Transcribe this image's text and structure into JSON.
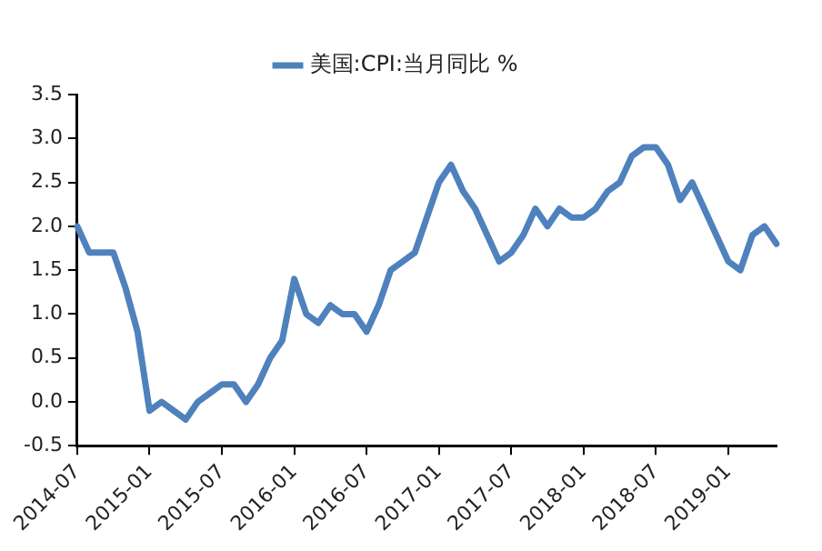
{
  "chart_data": {
    "type": "line",
    "legend": "top",
    "grid": false,
    "marker": "none",
    "line_style": "solid",
    "categories": [
      "2014-07",
      null,
      null,
      null,
      null,
      null,
      "2015-01",
      null,
      null,
      null,
      null,
      null,
      "2015-07",
      null,
      null,
      null,
      null,
      null,
      "2016-01",
      null,
      null,
      null,
      null,
      null,
      "2016-07",
      null,
      null,
      null,
      null,
      null,
      "2017-01",
      null,
      null,
      null,
      null,
      null,
      "2017-07",
      null,
      null,
      null,
      null,
      null,
      "2018-01",
      null,
      null,
      null,
      null,
      null,
      "2018-07",
      null,
      null,
      null,
      null,
      null,
      "2019-01",
      null,
      null,
      null,
      null
    ],
    "series": [
      {
        "name": "美国:CPI:当月同比 %",
        "color": "#4f81bd",
        "values": [
          2.0,
          1.7,
          1.7,
          1.7,
          1.3,
          0.8,
          -0.1,
          0.0,
          -0.1,
          -0.2,
          0.0,
          0.1,
          0.2,
          0.2,
          0.0,
          0.2,
          0.5,
          0.7,
          1.4,
          1.0,
          0.9,
          1.1,
          1.0,
          1.0,
          0.8,
          1.1,
          1.5,
          1.6,
          1.7,
          2.1,
          2.5,
          2.7,
          2.4,
          2.2,
          1.9,
          1.6,
          1.7,
          1.9,
          2.2,
          2.0,
          2.2,
          2.1,
          2.1,
          2.2,
          2.4,
          2.5,
          2.8,
          2.9,
          2.9,
          2.7,
          2.3,
          2.5,
          2.2,
          1.9,
          1.6,
          1.5,
          1.9,
          2.0,
          1.8
        ]
      }
    ],
    "ylim": [
      -0.5,
      3.5
    ],
    "yticks": [
      {
        "value": -0.5,
        "label": "-0.5"
      },
      {
        "value": 0,
        "label": "0.0"
      },
      {
        "value": 0.5,
        "label": "0.5"
      },
      {
        "value": 1,
        "label": "1.0"
      },
      {
        "value": 1.5,
        "label": "1.5"
      },
      {
        "value": 2,
        "label": "2.0"
      },
      {
        "value": 2.5,
        "label": "2.5"
      },
      {
        "value": 3,
        "label": "3.0"
      },
      {
        "value": 3.5,
        "label": "3.5"
      }
    ]
  }
}
